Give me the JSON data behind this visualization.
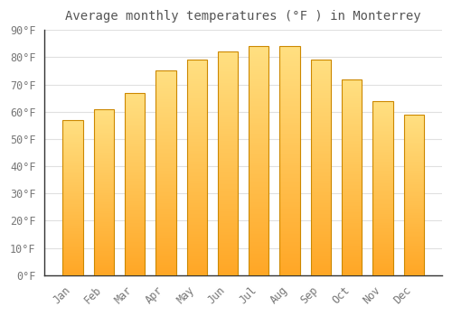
{
  "title": "Average monthly temperatures (°F ) in Monterrey",
  "months": [
    "Jan",
    "Feb",
    "Mar",
    "Apr",
    "May",
    "Jun",
    "Jul",
    "Aug",
    "Sep",
    "Oct",
    "Nov",
    "Dec"
  ],
  "values": [
    57,
    61,
    67,
    75,
    79,
    82,
    84,
    84,
    79,
    72,
    64,
    59
  ],
  "bar_color_bottom": "#FFA726",
  "bar_color_top": "#FFE082",
  "bar_edge_color": "#CC8800",
  "background_color": "#FFFFFF",
  "plot_bg_color": "#FFFFFF",
  "grid_color": "#E0E0E0",
  "ylim": [
    0,
    90
  ],
  "yticks": [
    0,
    10,
    20,
    30,
    40,
    50,
    60,
    70,
    80,
    90
  ],
  "title_fontsize": 10,
  "tick_fontsize": 8.5,
  "tick_label_color": "#777777",
  "title_color": "#555555"
}
